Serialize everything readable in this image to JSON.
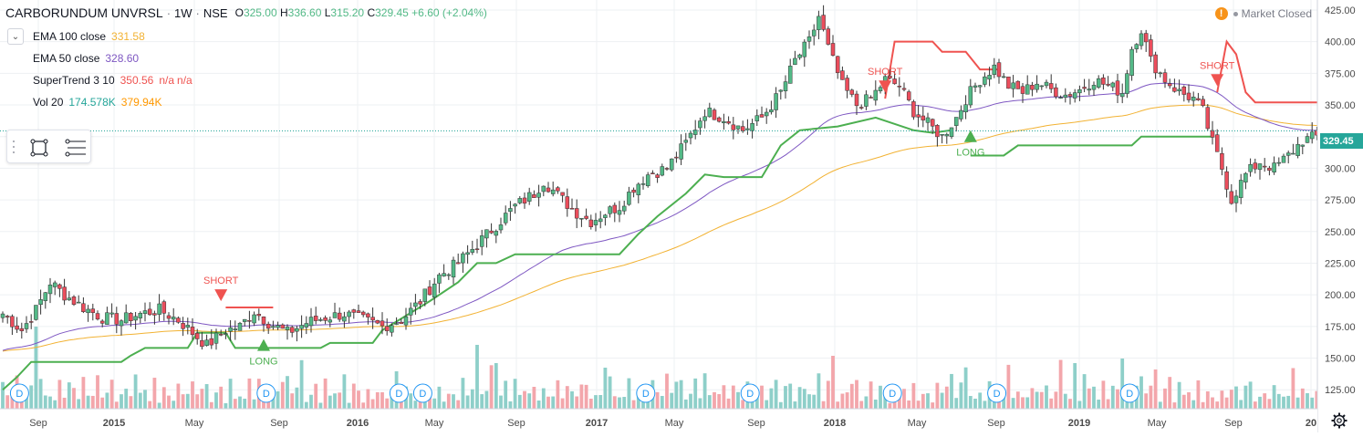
{
  "header": {
    "symbol": "CARBORUNDUM UNVRSL",
    "interval": "1W",
    "exchange": "NSE",
    "open_label": "O",
    "open": "325.00",
    "high_label": "H",
    "high": "336.60",
    "low_label": "L",
    "low": "315.20",
    "close_label": "C",
    "close": "329.45",
    "change": "+6.60 (+2.04%)"
  },
  "indicators": [
    {
      "name": "EMA 100 close",
      "values": [
        "331.58"
      ],
      "colors": [
        "#f2b233"
      ]
    },
    {
      "name": "EMA 50 close",
      "values": [
        "328.60"
      ],
      "colors": [
        "#7e57c2"
      ]
    },
    {
      "name": "SuperTrend 3 10",
      "values": [
        "350.56",
        "n/a",
        "n/a"
      ],
      "colors": [
        "#ef5350",
        "#ef5350",
        "#ef5350"
      ]
    },
    {
      "name": "Vol 20",
      "values": [
        "174.578K",
        "379.94K"
      ],
      "colors": [
        "#26a69a",
        "#ff9800"
      ]
    }
  ],
  "market_status": "Market Closed",
  "current_price_label": "329.45",
  "colors": {
    "up": "#53b987",
    "down": "#eb4d5c",
    "vol_up": "#8ecfc9",
    "vol_down": "#f3a6ab",
    "ema50": "#7e57c2",
    "ema100": "#f2b233",
    "st_up": "#4caf50",
    "st_down": "#ef5350",
    "grid": "#eef0f3",
    "axis_text": "#4a4a4a",
    "price_line": "#26a69a"
  },
  "chart_data": {
    "type": "candlestick",
    "y_axis": {
      "min": 110,
      "max": 430,
      "ticks": [
        125,
        150,
        175,
        200,
        225,
        250,
        275,
        300,
        325,
        350,
        375,
        400,
        425
      ]
    },
    "x_axis": {
      "ticks": [
        "Sep",
        "2015",
        "May",
        "Sep",
        "2016",
        "May",
        "Sep",
        "2017",
        "May",
        "Sep",
        "2018",
        "May",
        "Sep",
        "2019",
        "May",
        "Sep",
        "20"
      ]
    },
    "price_path": [
      [
        0,
        185
      ],
      [
        4,
        172
      ],
      [
        7,
        188
      ],
      [
        10,
        210
      ],
      [
        13,
        200
      ],
      [
        17,
        190
      ],
      [
        21,
        182
      ],
      [
        25,
        180
      ],
      [
        29,
        185
      ],
      [
        33,
        188
      ],
      [
        37,
        180
      ],
      [
        40,
        170
      ],
      [
        43,
        160
      ],
      [
        47,
        172
      ],
      [
        50,
        175
      ],
      [
        53,
        187
      ],
      [
        56,
        178
      ],
      [
        60,
        170
      ],
      [
        64,
        178
      ],
      [
        68,
        182
      ],
      [
        72,
        185
      ],
      [
        76,
        180
      ],
      [
        80,
        175
      ],
      [
        84,
        180
      ],
      [
        88,
        195
      ],
      [
        92,
        215
      ],
      [
        96,
        225
      ],
      [
        100,
        240
      ],
      [
        104,
        255
      ],
      [
        108,
        270
      ],
      [
        112,
        280
      ],
      [
        114,
        290
      ],
      [
        118,
        275
      ],
      [
        121,
        265
      ],
      [
        124,
        258
      ],
      [
        127,
        265
      ],
      [
        130,
        270
      ],
      [
        133,
        285
      ],
      [
        136,
        295
      ],
      [
        140,
        300
      ],
      [
        144,
        320
      ],
      [
        148,
        345
      ],
      [
        152,
        340
      ],
      [
        156,
        330
      ],
      [
        160,
        340
      ],
      [
        164,
        360
      ],
      [
        167,
        385
      ],
      [
        170,
        400
      ],
      [
        172,
        420
      ],
      [
        174,
        395
      ],
      [
        177,
        365
      ],
      [
        180,
        350
      ],
      [
        183,
        355
      ],
      [
        186,
        370
      ],
      [
        189,
        365
      ],
      [
        192,
        345
      ],
      [
        195,
        335
      ],
      [
        198,
        325
      ],
      [
        201,
        340
      ],
      [
        203,
        355
      ],
      [
        206,
        370
      ],
      [
        209,
        380
      ],
      [
        212,
        365
      ],
      [
        215,
        360
      ],
      [
        218,
        368
      ],
      [
        221,
        362
      ],
      [
        224,
        358
      ],
      [
        227,
        362
      ],
      [
        230,
        370
      ],
      [
        233,
        365
      ],
      [
        236,
        360
      ],
      [
        238,
        395
      ],
      [
        240,
        410
      ],
      [
        242,
        385
      ],
      [
        245,
        370
      ],
      [
        248,
        360
      ],
      [
        251,
        355
      ],
      [
        253,
        345
      ],
      [
        255,
        320
      ],
      [
        257,
        300
      ],
      [
        259,
        275
      ],
      [
        262,
        295
      ],
      [
        265,
        305
      ],
      [
        268,
        300
      ],
      [
        271,
        310
      ],
      [
        274,
        322
      ],
      [
        277,
        325
      ],
      [
        279,
        329
      ]
    ],
    "volume_pattern": [
      28,
      14,
      22,
      40,
      12,
      18,
      25,
      10,
      30,
      16,
      20,
      13,
      35,
      9,
      24,
      17,
      11,
      27,
      15,
      21
    ],
    "supertrend": {
      "up_segments": [
        [
          [
            0,
            125
          ],
          [
            3,
            135
          ],
          [
            6,
            147
          ],
          [
            25,
            147
          ],
          [
            27,
            152
          ],
          [
            30,
            158
          ],
          [
            39,
            158
          ],
          [
            41,
            170
          ],
          [
            47,
            170
          ],
          [
            49,
            158
          ],
          [
            67,
            158
          ],
          [
            69,
            162
          ],
          [
            78,
            162
          ],
          [
            80,
            172
          ],
          [
            90,
            195
          ],
          [
            96,
            210
          ],
          [
            100,
            225
          ],
          [
            104,
            225
          ],
          [
            108,
            232
          ],
          [
            130,
            232
          ],
          [
            134,
            248
          ],
          [
            138,
            262
          ],
          [
            144,
            280
          ],
          [
            148,
            295
          ],
          [
            152,
            293
          ],
          [
            160,
            293
          ],
          [
            164,
            318
          ],
          [
            168,
            330
          ],
          [
            176,
            333
          ],
          [
            184,
            340
          ],
          [
            192,
            330
          ],
          [
            196,
            328
          ],
          [
            200,
            330
          ]
        ],
        [
          [
            204,
            310
          ],
          [
            211,
            310
          ],
          [
            214,
            318
          ],
          [
            238,
            318
          ],
          [
            240,
            325
          ],
          [
            255,
            325
          ]
        ]
      ],
      "down_segments": [
        [
          [
            47,
            190
          ],
          [
            57,
            190
          ]
        ],
        [
          [
            186,
            355
          ],
          [
            188,
            400
          ],
          [
            196,
            400
          ],
          [
            198,
            392
          ],
          [
            203,
            392
          ],
          [
            206,
            378
          ],
          [
            210,
            378
          ]
        ],
        [
          [
            256,
            360
          ],
          [
            258,
            400
          ],
          [
            260,
            390
          ],
          [
            262,
            360
          ],
          [
            264,
            352
          ],
          [
            278,
            352
          ]
        ]
      ]
    },
    "signals": [
      {
        "label": "SHORT",
        "kind": "short",
        "bar": 46,
        "price": 200
      },
      {
        "label": "LONG",
        "kind": "long",
        "bar": 55,
        "price": 160
      },
      {
        "label": "SHORT",
        "kind": "short",
        "bar": 186,
        "price": 365
      },
      {
        "label": "LONG",
        "kind": "long",
        "bar": 204,
        "price": 325
      },
      {
        "label": "SHORT",
        "kind": "short",
        "bar": 256,
        "price": 370
      }
    ],
    "dividend_bars": [
      2,
      54,
      82,
      87,
      134,
      156,
      186,
      208,
      236
    ],
    "dividend_label": "D",
    "current_price": 329.45
  }
}
